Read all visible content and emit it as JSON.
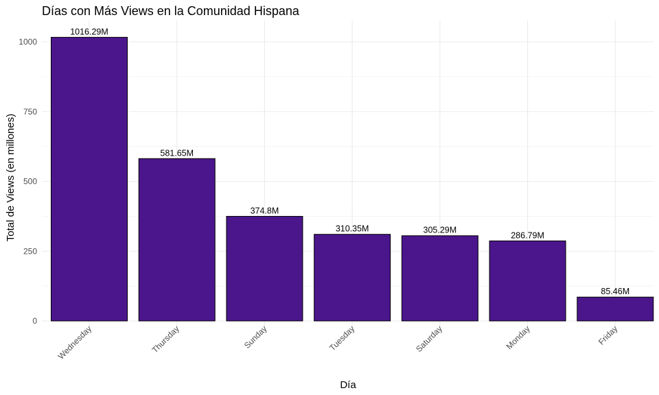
{
  "chart_data": {
    "type": "bar",
    "title": "Días con Más Views en la Comunidad Hispana",
    "xlabel": "Día",
    "ylabel": "Total de Views (en millones)",
    "categories": [
      "Wednesday",
      "Thursday",
      "Sunday",
      "Tuesday",
      "Saturday",
      "Monday",
      "Friday"
    ],
    "values": [
      1016.29,
      581.65,
      374.8,
      310.35,
      305.29,
      286.79,
      85.46
    ],
    "value_labels": [
      "1016.29M",
      "581.65M",
      "374.8M",
      "310.35M",
      "305.29M",
      "286.79M",
      "85.46M"
    ],
    "ylim": [
      0,
      1050
    ],
    "yticks": [
      0,
      250,
      500,
      750,
      1000
    ],
    "grid": true,
    "bar_color": "#4b168c",
    "bar_edge_color": "#000000",
    "grid_color": "#ebebeb"
  }
}
